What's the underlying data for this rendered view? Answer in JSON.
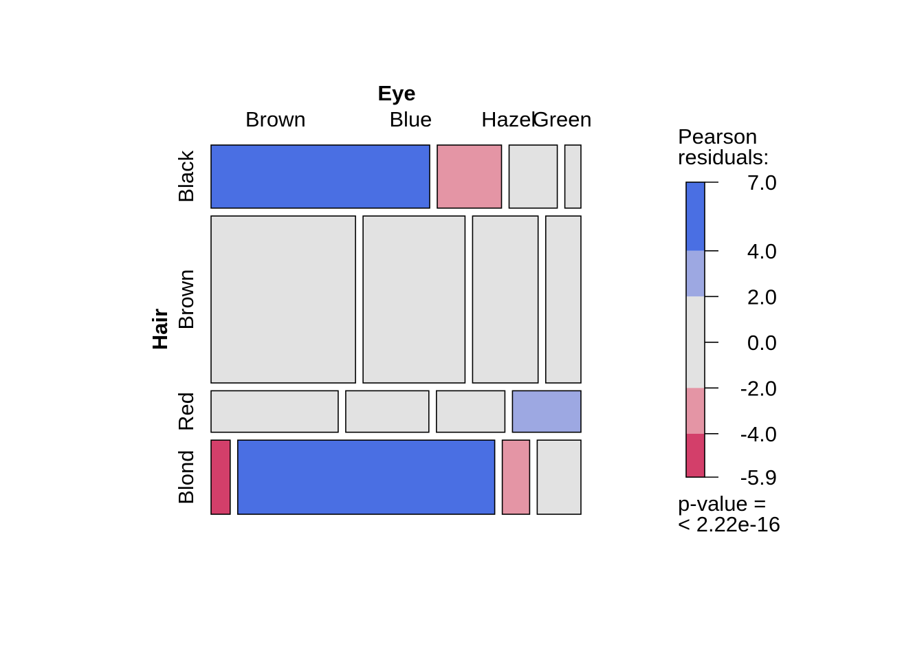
{
  "chart_data": {
    "type": "mosaic",
    "x_variable": "Eye",
    "y_variable": "Hair",
    "eye_levels": [
      "Brown",
      "Blue",
      "Hazel",
      "Green"
    ],
    "hair_levels": [
      "Black",
      "Brown",
      "Red",
      "Blond"
    ],
    "counts": [
      [
        68,
        20,
        15,
        5
      ],
      [
        119,
        84,
        54,
        29
      ],
      [
        26,
        17,
        14,
        14
      ],
      [
        7,
        94,
        10,
        16
      ]
    ],
    "residual_class": [
      [
        "strong-positive",
        "moderate-negative",
        "neutral",
        "neutral"
      ],
      [
        "neutral",
        "neutral",
        "neutral",
        "neutral"
      ],
      [
        "neutral",
        "neutral",
        "neutral",
        "moderate-positive"
      ],
      [
        "strong-negative",
        "strong-positive",
        "moderate-negative",
        "neutral"
      ]
    ],
    "legend": {
      "title_line1": "Pearson",
      "title_line2": "residuals:",
      "ticks": [
        7.0,
        4.0,
        2.0,
        0.0,
        -2.0,
        -4.0,
        -5.9
      ],
      "tick_labels": [
        "7.0",
        "4.0",
        "2.0",
        "0.0",
        "-2.0",
        "-4.0",
        "-5.9"
      ],
      "bands": [
        {
          "from": 4.0,
          "to": 7.0,
          "class": "strong-positive"
        },
        {
          "from": 2.0,
          "to": 4.0,
          "class": "moderate-positive"
        },
        {
          "from": -2.0,
          "to": 2.0,
          "class": "neutral"
        },
        {
          "from": -4.0,
          "to": -2.0,
          "class": "moderate-negative"
        },
        {
          "from": -5.9,
          "to": -4.0,
          "class": "strong-negative"
        }
      ],
      "pvalue_line1": "p-value =",
      "pvalue_line2": "< 2.22e-16"
    },
    "colors": {
      "strong-positive": "#4a6fe3",
      "moderate-positive": "#9da8e2",
      "neutral": "#e2e2e2",
      "moderate-negative": "#e495a5",
      "strong-negative": "#d33f6a"
    }
  }
}
